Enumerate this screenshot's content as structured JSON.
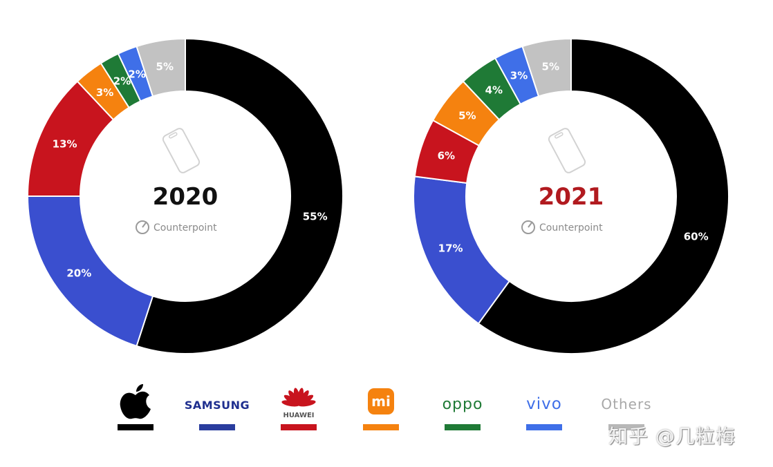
{
  "chart_data": [
    {
      "type": "pie",
      "title": "2020",
      "title_color": "#111111",
      "categories": [
        "Apple",
        "Samsung",
        "Huawei",
        "Xiaomi",
        "OPPO",
        "vivo",
        "Others"
      ],
      "values": [
        55,
        20,
        13,
        3,
        2,
        2,
        5
      ],
      "labels": [
        "55%",
        "20%",
        "13%",
        "3%",
        "2%",
        "2%",
        "5%"
      ],
      "colors": [
        "#000000",
        "#3a4fcf",
        "#c8141e",
        "#f5820f",
        "#1f7a36",
        "#3f6fe8",
        "#c2c2c2"
      ],
      "watermark": "Counterpoint"
    },
    {
      "type": "pie",
      "title": "2021",
      "title_color": "#b11a1f",
      "categories": [
        "Apple",
        "Samsung",
        "Huawei",
        "Xiaomi",
        "OPPO",
        "vivo",
        "Others"
      ],
      "values": [
        60,
        17,
        6,
        5,
        4,
        3,
        5
      ],
      "labels": [
        "60%",
        "17%",
        "6%",
        "5%",
        "4%",
        "3%",
        "5%"
      ],
      "colors": [
        "#000000",
        "#3a4fcf",
        "#c8141e",
        "#f5820f",
        "#1f7a36",
        "#3f6fe8",
        "#c2c2c2"
      ],
      "watermark": "Counterpoint"
    }
  ],
  "legend": [
    {
      "brand": "apple",
      "text": "",
      "icon": "apple-logo-icon",
      "color": "#000000"
    },
    {
      "brand": "samsung",
      "text": "SAMSUNG",
      "icon": "",
      "color": "#2a3d9e"
    },
    {
      "brand": "huawei",
      "text": "HUAWEI",
      "icon": "huawei-logo-icon",
      "color": "#c8141e"
    },
    {
      "brand": "xiaomi",
      "text": "mi",
      "icon": "xiaomi-logo-icon",
      "color": "#f5820f"
    },
    {
      "brand": "oppo",
      "text": "oppo",
      "icon": "",
      "color": "#1f7a36"
    },
    {
      "brand": "vivo",
      "text": "vivo",
      "icon": "",
      "color": "#3f6fe8"
    },
    {
      "brand": "others",
      "text": "Others",
      "icon": "",
      "color": "#b8b8b8"
    }
  ],
  "watermark_text": "知乎 @几粒梅"
}
